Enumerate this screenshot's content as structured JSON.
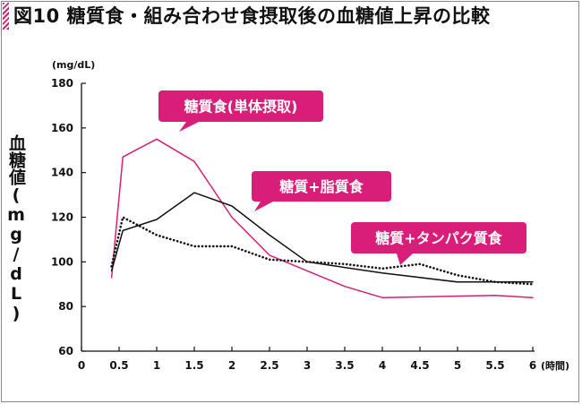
{
  "header": {
    "title": "図10 糖質食・組み合わせ食摂取後の血糖値上昇の比較"
  },
  "chart_data": {
    "type": "line",
    "title": "図10 糖質食・組み合わせ食摂取後の血糖値上昇の比較",
    "xlabel": "(時間)",
    "ylabel": "血糖値(mg/dL)",
    "yunit": "(mg/dL)",
    "xlim": [
      0,
      6
    ],
    "ylim": [
      60,
      180
    ],
    "xticks": [
      0,
      0.5,
      1,
      1.5,
      2,
      2.5,
      3,
      3.5,
      4,
      4.5,
      5,
      5.5,
      6
    ],
    "xtick_labels": [
      "0",
      "0.5",
      "1",
      "1.5",
      "2",
      "2.5",
      "3",
      "3.5",
      "4",
      "4.5",
      "5",
      "5.5",
      "6"
    ],
    "yticks": [
      60,
      80,
      100,
      120,
      140,
      160,
      180
    ],
    "ytick_labels": [
      "60",
      "80",
      "100",
      "120",
      "140",
      "160",
      "180"
    ],
    "grid": false,
    "series": [
      {
        "name": "糖質食(単体摂取)",
        "color": "#d81e78",
        "style": "solid",
        "x": [
          0.4,
          0.55,
          1,
          1.5,
          2,
          2.5,
          3,
          3.5,
          4,
          5.5,
          6
        ],
        "y": [
          93,
          147,
          155,
          145,
          120,
          103,
          96,
          89,
          84,
          85,
          84
        ]
      },
      {
        "name": "糖質+脂質食",
        "color": "#111111",
        "style": "solid",
        "x": [
          0.4,
          0.55,
          1,
          1.5,
          2,
          2.5,
          3,
          4,
          5,
          6
        ],
        "y": [
          96,
          114,
          119,
          131,
          125,
          112,
          100,
          95,
          91,
          91
        ]
      },
      {
        "name": "糖質+タンパク質食",
        "color": "#111111",
        "style": "dotted",
        "x": [
          0.4,
          0.55,
          1,
          1.5,
          2,
          2.5,
          3,
          3.5,
          4,
          4.5,
          5,
          5.5,
          6
        ],
        "y": [
          98,
          120,
          112,
          107,
          107,
          101,
          100,
          99,
          97,
          99,
          94,
          91,
          90
        ]
      }
    ],
    "callouts": [
      {
        "series": 0,
        "label": "糖質食(単体摂取)"
      },
      {
        "series": 1,
        "label": "糖質+脂質食"
      },
      {
        "series": 2,
        "label": "糖質+タンパク質食"
      }
    ],
    "callout_color": "#d81e78"
  }
}
